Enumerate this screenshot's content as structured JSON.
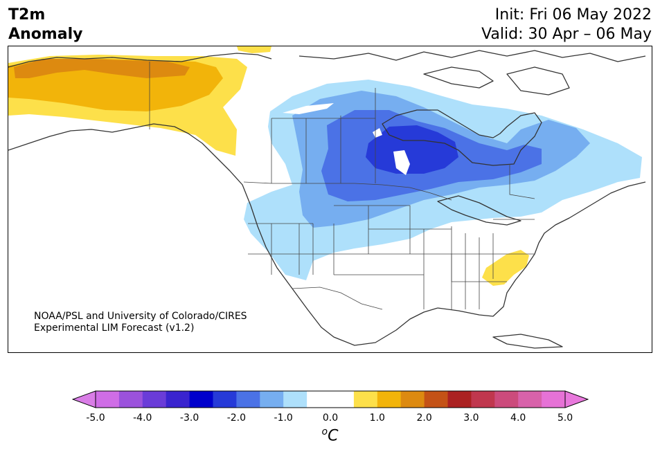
{
  "header": {
    "title_line1": "T2m",
    "title_line2": "Anomaly",
    "init": "Init: Fri 06 May 2022",
    "valid": "Valid: 30 Apr – 06 May"
  },
  "credit": {
    "line1": "NOAA/PSL and University of Colorado/CIRES",
    "line2": "Experimental LIM Forecast (v1.2)"
  },
  "colorbar": {
    "unit_prefix": "o",
    "unit_main": "C",
    "ticks": [
      "-5.0",
      "-4.0",
      "-3.0",
      "-2.0",
      "-1.0",
      "0.0",
      "1.0",
      "2.0",
      "3.0",
      "4.0",
      "5.0"
    ],
    "colors": [
      "#cf6de6",
      "#9b52dc",
      "#6a3cd8",
      "#3a24cf",
      "#0000cc",
      "#263ad8",
      "#4b72e6",
      "#76aef0",
      "#aee0fb",
      "#ffffff",
      "#ffffff",
      "#fde04a",
      "#f2b40a",
      "#dd8a10",
      "#c45216",
      "#ab2121",
      "#c0374e",
      "#cc4b7c",
      "#d862aa",
      "#e672d6"
    ],
    "under_color": "#d97de6",
    "over_color": "#e878dc"
  },
  "map_data": {
    "region": "North America",
    "variable": "2-m temperature anomaly",
    "anomaly_areas": [
      {
        "region": "Alaska / Yukon",
        "level": "warm",
        "range_c": [
          0.5,
          2.0
        ]
      },
      {
        "region": "Canadian Prairies / Upper Midwest / Great Lakes",
        "level": "cold",
        "range_c": [
          -3.0,
          -0.5
        ]
      },
      {
        "region": "Hudson Bay region",
        "level": "cold",
        "range_c": [
          -3.0,
          -2.5
        ]
      },
      {
        "region": "Quebec / Eastern Canada",
        "level": "cold",
        "range_c": [
          -1.5,
          -0.5
        ]
      },
      {
        "region": "Western US",
        "level": "cold",
        "range_c": [
          -1.0,
          -0.5
        ]
      },
      {
        "region": "Carolinas / Virginia",
        "level": "warm",
        "range_c": [
          0.5,
          1.0
        ]
      }
    ]
  }
}
